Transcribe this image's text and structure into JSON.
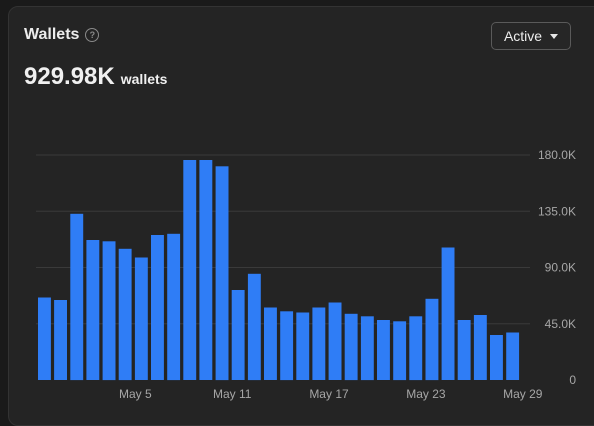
{
  "card": {
    "title": "Wallets",
    "help_icon": "help-circle-icon",
    "dropdown": {
      "selected": "Active",
      "icon": "caret-down-icon"
    },
    "metric": {
      "value": "929.98K",
      "unit": "wallets"
    }
  },
  "colors": {
    "bar": "#2f7df6",
    "background": "#242424",
    "grid": "#3a3a3a",
    "axis_text": "#a6a6a6"
  },
  "chart_data": {
    "type": "bar",
    "title": "",
    "xlabel": "",
    "ylabel": "",
    "ylim": [
      0,
      200000
    ],
    "y_ticks": [
      {
        "value": 0,
        "label": "0"
      },
      {
        "value": 45000,
        "label": "45.0K"
      },
      {
        "value": 90000,
        "label": "90.0K"
      },
      {
        "value": 135000,
        "label": "135.0K"
      },
      {
        "value": 180000,
        "label": "180.0K"
      }
    ],
    "x_tick_labels": [
      {
        "index": 6,
        "label": "May 5"
      },
      {
        "index": 12,
        "label": "May 11"
      },
      {
        "index": 18,
        "label": "May 17"
      },
      {
        "index": 24,
        "label": "May 23"
      },
      {
        "index": 30,
        "label": "May 29"
      }
    ],
    "categories": [
      "Apr 29",
      "Apr 30",
      "May 1",
      "May 2",
      "May 3",
      "May 4",
      "May 5",
      "May 6",
      "May 7",
      "May 8",
      "May 9",
      "May 10",
      "May 11",
      "May 12",
      "May 13",
      "May 14",
      "May 15",
      "May 16",
      "May 17",
      "May 18",
      "May 19",
      "May 20",
      "May 21",
      "May 22",
      "May 23",
      "May 24",
      "May 25",
      "May 26",
      "May 27",
      "May 28",
      "May 29"
    ],
    "values": [
      66000,
      64000,
      133000,
      112000,
      111000,
      105000,
      98000,
      116000,
      117000,
      176000,
      176000,
      171000,
      72000,
      85000,
      58000,
      55000,
      54000,
      58000,
      62000,
      53000,
      51000,
      48000,
      47000,
      51000,
      65000,
      106000,
      48000,
      52000,
      36000,
      38000,
      0
    ],
    "grid": true,
    "y_axis_side": "right"
  }
}
